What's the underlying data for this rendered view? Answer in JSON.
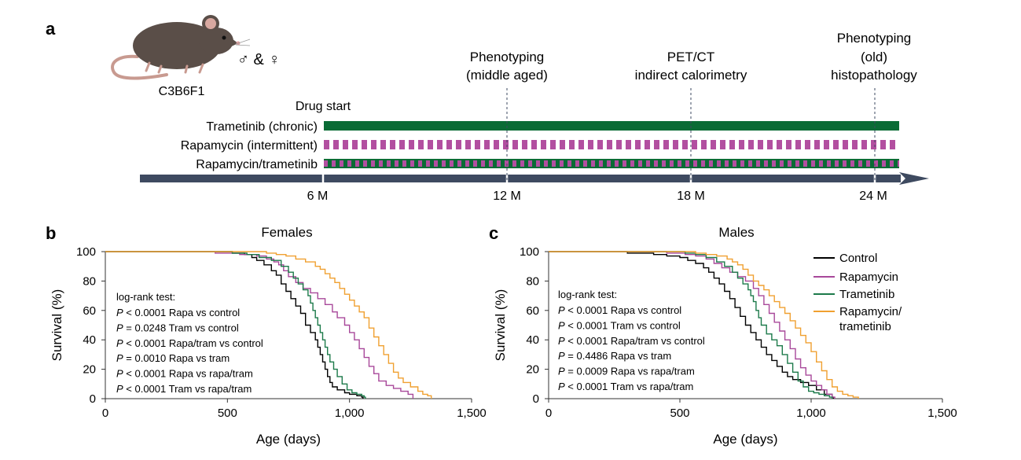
{
  "colors": {
    "control": "#000000",
    "rapamycin": "#a8489a",
    "trametinib": "#1c7a4a",
    "combo": "#f0a030",
    "timeline": "#3e4a60",
    "tram_bar": "#0a6b35",
    "rapa_bar": "#b24fa0",
    "mouse": "#5a4e48"
  },
  "panel_a": {
    "label": "a",
    "mouse_label": "C3B6F1",
    "sex_label": "♂ & ♀",
    "drug_start": "Drug start",
    "bars": [
      "Trametinib (chronic)",
      "Rapamycin (intermittent)",
      "Rapamycin/trametinib"
    ],
    "ticks": [
      "6 M",
      "12 M",
      "18 M",
      "24 M"
    ],
    "milestones": [
      {
        "lines": [
          "Phenotyping",
          "(middle aged)"
        ],
        "month": 12
      },
      {
        "lines": [
          "PET/CT",
          "indirect calorimetry"
        ],
        "month": 18
      },
      {
        "lines": [
          "Phenotyping",
          "(old)",
          "histopathology"
        ],
        "month": 24
      }
    ]
  },
  "panel_b": {
    "label": "b"
  },
  "panel_c": {
    "label": "c"
  },
  "legend": [
    "Control",
    "Rapamycin",
    "Trametinib",
    "Rapamycin/",
    "trametinib"
  ],
  "chart_data": [
    {
      "type": "line",
      "title": "Females",
      "xlabel": "Age (days)",
      "ylabel": "Survival (%)",
      "xlim": [
        0,
        1500
      ],
      "ylim": [
        0,
        100
      ],
      "xticks": [
        "0",
        "500",
        "1,000",
        "1,500"
      ],
      "yticks": [
        "0",
        "20",
        "40",
        "60",
        "80",
        "100"
      ],
      "stats_title": "log-rank test:",
      "stats": [
        [
          "< 0.0001",
          "Rapa vs control"
        ],
        [
          "= 0.0248",
          "Tram vs control"
        ],
        [
          "< 0.0001",
          "Rapa/tram vs control"
        ],
        [
          "= 0.0010",
          "Rapa vs tram"
        ],
        [
          "< 0.0001",
          "Rapa vs rapa/tram"
        ],
        [
          "< 0.0001",
          "Tram vs rapa/tram"
        ]
      ],
      "series": [
        {
          "key": "control",
          "points": [
            [
              0,
              100
            ],
            [
              420,
              100
            ],
            [
              520,
              99
            ],
            [
              570,
              98
            ],
            [
              600,
              96
            ],
            [
              620,
              94
            ],
            [
              650,
              91
            ],
            [
              680,
              87
            ],
            [
              700,
              84
            ],
            [
              720,
              78
            ],
            [
              740,
              73
            ],
            [
              760,
              68
            ],
            [
              780,
              63
            ],
            [
              800,
              58
            ],
            [
              820,
              50
            ],
            [
              840,
              45
            ],
            [
              860,
              40
            ],
            [
              870,
              35
            ],
            [
              880,
              30
            ],
            [
              890,
              25
            ],
            [
              900,
              20
            ],
            [
              910,
              15
            ],
            [
              920,
              11
            ],
            [
              930,
              8
            ],
            [
              950,
              6
            ],
            [
              980,
              4
            ],
            [
              1000,
              3
            ],
            [
              1030,
              2
            ],
            [
              1050,
              1
            ],
            [
              1055,
              0
            ]
          ]
        },
        {
          "key": "rapamycin",
          "points": [
            [
              0,
              100
            ],
            [
              330,
              100
            ],
            [
              450,
              99
            ],
            [
              550,
              98
            ],
            [
              620,
              97
            ],
            [
              660,
              95
            ],
            [
              690,
              93
            ],
            [
              710,
              91
            ],
            [
              730,
              87
            ],
            [
              750,
              83
            ],
            [
              780,
              79
            ],
            [
              810,
              75
            ],
            [
              840,
              72
            ],
            [
              870,
              68
            ],
            [
              900,
              64
            ],
            [
              930,
              59
            ],
            [
              950,
              55
            ],
            [
              980,
              50
            ],
            [
              1000,
              45
            ],
            [
              1020,
              40
            ],
            [
              1040,
              34
            ],
            [
              1060,
              28
            ],
            [
              1080,
              22
            ],
            [
              1100,
              17
            ],
            [
              1120,
              12
            ],
            [
              1150,
              9
            ],
            [
              1180,
              7
            ],
            [
              1210,
              5
            ],
            [
              1240,
              3
            ],
            [
              1260,
              0
            ]
          ]
        },
        {
          "key": "trametinib",
          "points": [
            [
              0,
              100
            ],
            [
              420,
              100
            ],
            [
              520,
              99
            ],
            [
              580,
              98
            ],
            [
              630,
              96
            ],
            [
              680,
              94
            ],
            [
              720,
              90
            ],
            [
              750,
              86
            ],
            [
              770,
              82
            ],
            [
              790,
              78
            ],
            [
              810,
              74
            ],
            [
              830,
              70
            ],
            [
              840,
              65
            ],
            [
              850,
              60
            ],
            [
              860,
              55
            ],
            [
              870,
              50
            ],
            [
              880,
              45
            ],
            [
              890,
              40
            ],
            [
              900,
              35
            ],
            [
              910,
              30
            ],
            [
              920,
              25
            ],
            [
              935,
              20
            ],
            [
              950,
              15
            ],
            [
              970,
              10
            ],
            [
              990,
              6
            ],
            [
              1010,
              4
            ],
            [
              1030,
              3
            ],
            [
              1050,
              2
            ],
            [
              1060,
              1
            ],
            [
              1065,
              0
            ]
          ]
        },
        {
          "key": "combo",
          "points": [
            [
              0,
              100
            ],
            [
              620,
              100
            ],
            [
              660,
              99
            ],
            [
              700,
              98
            ],
            [
              740,
              97
            ],
            [
              780,
              95
            ],
            [
              820,
              93
            ],
            [
              860,
              90
            ],
            [
              880,
              88
            ],
            [
              900,
              85
            ],
            [
              920,
              82
            ],
            [
              940,
              79
            ],
            [
              960,
              75
            ],
            [
              980,
              71
            ],
            [
              1000,
              67
            ],
            [
              1020,
              63
            ],
            [
              1040,
              59
            ],
            [
              1060,
              55
            ],
            [
              1080,
              48
            ],
            [
              1100,
              42
            ],
            [
              1120,
              36
            ],
            [
              1140,
              30
            ],
            [
              1160,
              24
            ],
            [
              1180,
              18
            ],
            [
              1200,
              14
            ],
            [
              1220,
              11
            ],
            [
              1250,
              8
            ],
            [
              1280,
              5
            ],
            [
              1300,
              3
            ],
            [
              1320,
              2
            ],
            [
              1335,
              0
            ]
          ]
        }
      ]
    },
    {
      "type": "line",
      "title": "Males",
      "xlabel": "Age (days)",
      "ylabel": "Survival (%)",
      "xlim": [
        0,
        1500
      ],
      "ylim": [
        0,
        100
      ],
      "xticks": [
        "0",
        "500",
        "1,000",
        "1,500"
      ],
      "yticks": [
        "0",
        "20",
        "40",
        "60",
        "80",
        "100"
      ],
      "stats_title": "log-rank test:",
      "stats": [
        [
          "< 0.0001",
          "Rapa vs control"
        ],
        [
          "< 0.0001",
          "Tram vs control"
        ],
        [
          "< 0.0001",
          "Rapa/tram vs control"
        ],
        [
          "= 0.4486",
          "Rapa vs tram"
        ],
        [
          "= 0.0009",
          "Rapa vs rapa/tram"
        ],
        [
          "< 0.0001",
          "Tram vs rapa/tram"
        ]
      ],
      "series": [
        {
          "key": "control",
          "points": [
            [
              0,
              100
            ],
            [
              250,
              100
            ],
            [
              300,
              99
            ],
            [
              400,
              98
            ],
            [
              450,
              97
            ],
            [
              500,
              96
            ],
            [
              530,
              94
            ],
            [
              560,
              92
            ],
            [
              590,
              89
            ],
            [
              610,
              86
            ],
            [
              630,
              82
            ],
            [
              650,
              78
            ],
            [
              670,
              73
            ],
            [
              690,
              68
            ],
            [
              710,
              62
            ],
            [
              730,
              56
            ],
            [
              750,
              50
            ],
            [
              770,
              45
            ],
            [
              790,
              40
            ],
            [
              810,
              35
            ],
            [
              830,
              30
            ],
            [
              850,
              26
            ],
            [
              870,
              22
            ],
            [
              890,
              18
            ],
            [
              910,
              15
            ],
            [
              930,
              13
            ],
            [
              960,
              11
            ],
            [
              990,
              9
            ],
            [
              1020,
              6
            ],
            [
              1050,
              3
            ],
            [
              1080,
              1
            ],
            [
              1085,
              0
            ]
          ]
        },
        {
          "key": "rapamycin",
          "points": [
            [
              0,
              100
            ],
            [
              350,
              100
            ],
            [
              450,
              99
            ],
            [
              520,
              98
            ],
            [
              560,
              97
            ],
            [
              600,
              95
            ],
            [
              630,
              92
            ],
            [
              660,
              89
            ],
            [
              690,
              86
            ],
            [
              720,
              83
            ],
            [
              750,
              80
            ],
            [
              780,
              75
            ],
            [
              800,
              70
            ],
            [
              820,
              64
            ],
            [
              840,
              58
            ],
            [
              860,
              52
            ],
            [
              880,
              46
            ],
            [
              900,
              40
            ],
            [
              920,
              34
            ],
            [
              940,
              27
            ],
            [
              960,
              21
            ],
            [
              980,
              16
            ],
            [
              1000,
              12
            ],
            [
              1020,
              9
            ],
            [
              1040,
              6
            ],
            [
              1060,
              3
            ],
            [
              1080,
              1
            ],
            [
              1090,
              0
            ]
          ]
        },
        {
          "key": "trametinib",
          "points": [
            [
              0,
              100
            ],
            [
              450,
              100
            ],
            [
              520,
              99
            ],
            [
              560,
              98
            ],
            [
              600,
              96
            ],
            [
              640,
              93
            ],
            [
              670,
              90
            ],
            [
              700,
              86
            ],
            [
              720,
              82
            ],
            [
              740,
              78
            ],
            [
              760,
              74
            ],
            [
              770,
              70
            ],
            [
              780,
              66
            ],
            [
              790,
              60
            ],
            [
              800,
              55
            ],
            [
              810,
              50
            ],
            [
              830,
              44
            ],
            [
              850,
              40
            ],
            [
              870,
              36
            ],
            [
              890,
              30
            ],
            [
              910,
              24
            ],
            [
              930,
              18
            ],
            [
              950,
              12
            ],
            [
              970,
              8
            ],
            [
              990,
              5
            ],
            [
              1010,
              4
            ],
            [
              1030,
              3
            ],
            [
              1050,
              2
            ],
            [
              1070,
              1
            ],
            [
              1080,
              0
            ]
          ]
        },
        {
          "key": "combo",
          "points": [
            [
              0,
              100
            ],
            [
              500,
              100
            ],
            [
              560,
              99
            ],
            [
              600,
              98
            ],
            [
              640,
              97
            ],
            [
              680,
              95
            ],
            [
              700,
              93
            ],
            [
              720,
              91
            ],
            [
              740,
              88
            ],
            [
              760,
              84
            ],
            [
              780,
              80
            ],
            [
              800,
              77
            ],
            [
              820,
              74
            ],
            [
              840,
              70
            ],
            [
              860,
              66
            ],
            [
              880,
              62
            ],
            [
              900,
              58
            ],
            [
              920,
              53
            ],
            [
              940,
              48
            ],
            [
              960,
              43
            ],
            [
              980,
              38
            ],
            [
              1000,
              32
            ],
            [
              1020,
              25
            ],
            [
              1040,
              19
            ],
            [
              1060,
              13
            ],
            [
              1080,
              8
            ],
            [
              1100,
              5
            ],
            [
              1120,
              3
            ],
            [
              1140,
              2
            ],
            [
              1160,
              1
            ],
            [
              1180,
              0
            ]
          ]
        }
      ]
    }
  ]
}
